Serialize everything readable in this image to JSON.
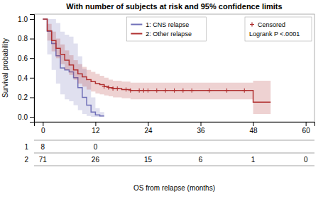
{
  "chart_data": {
    "type": "step",
    "title": "With number of subjects at risk and 95% confidence limits",
    "xlabel": "OS from relapse (months)",
    "ylabel": "Survival probability",
    "xlim": [
      -2,
      62
    ],
    "ylim": [
      -0.05,
      1.05
    ],
    "xticks": [
      0,
      12,
      24,
      36,
      48,
      60
    ],
    "yticks": [
      {
        "value": 0,
        "label": "0.0"
      },
      0.2,
      0.4,
      0.6,
      0.8,
      {
        "value": 1,
        "label": "1.0"
      }
    ],
    "grid": false,
    "legend": "upper center",
    "series": [
      {
        "name": "1: CNS relapse",
        "type": "step",
        "color": "#7070b8",
        "x": [
          0,
          1,
          2,
          3,
          4,
          5,
          6,
          7,
          8,
          9,
          10,
          11,
          12,
          13,
          14
        ],
        "values": [
          1.0,
          0.875,
          0.75,
          0.625,
          0.5,
          0.48,
          0.46,
          0.4,
          0.3,
          0.2,
          0.12,
          0.05,
          0.02,
          0.01,
          0.01
        ],
        "upper": [
          1.0,
          1.0,
          1.0,
          0.96,
          0.87,
          0.84,
          0.82,
          0.75,
          0.62,
          0.49,
          0.37,
          0.2,
          0.09,
          0.05,
          0.05
        ],
        "lower": [
          1.0,
          0.64,
          0.48,
          0.34,
          0.23,
          0.18,
          0.16,
          0.12,
          0.07,
          0.03,
          0.01,
          0.0,
          0.0,
          0.0,
          0.0
        ]
      },
      {
        "name": "2: Other relapse",
        "type": "step",
        "color": "#b03030",
        "x": [
          0,
          1,
          2,
          3,
          4,
          5,
          6,
          7,
          8,
          9,
          10,
          11,
          12,
          13,
          14,
          15,
          16,
          17,
          18,
          19,
          20,
          21,
          22,
          23,
          24,
          25,
          26,
          27,
          28,
          30,
          32,
          34,
          36,
          38,
          40,
          42,
          44,
          46,
          48,
          50,
          52
        ],
        "values": [
          1.0,
          0.88,
          0.78,
          0.7,
          0.64,
          0.58,
          0.53,
          0.48,
          0.44,
          0.41,
          0.38,
          0.36,
          0.34,
          0.33,
          0.31,
          0.3,
          0.29,
          0.29,
          0.28,
          0.28,
          0.27,
          0.27,
          0.27,
          0.27,
          0.27,
          0.27,
          0.27,
          0.27,
          0.27,
          0.27,
          0.27,
          0.27,
          0.27,
          0.27,
          0.27,
          0.27,
          0.27,
          0.27,
          0.15,
          0.15,
          0.15
        ],
        "upper": [
          1.0,
          0.95,
          0.87,
          0.8,
          0.74,
          0.68,
          0.63,
          0.58,
          0.54,
          0.51,
          0.48,
          0.46,
          0.44,
          0.42,
          0.4,
          0.38,
          0.37,
          0.37,
          0.36,
          0.36,
          0.35,
          0.35,
          0.35,
          0.35,
          0.35,
          0.35,
          0.35,
          0.35,
          0.35,
          0.35,
          0.35,
          0.35,
          0.35,
          0.35,
          0.35,
          0.35,
          0.35,
          0.35,
          0.37,
          0.37,
          0.37
        ],
        "lower": [
          1.0,
          0.78,
          0.67,
          0.6,
          0.54,
          0.48,
          0.43,
          0.38,
          0.34,
          0.31,
          0.28,
          0.26,
          0.24,
          0.23,
          0.22,
          0.21,
          0.2,
          0.2,
          0.19,
          0.19,
          0.18,
          0.18,
          0.18,
          0.18,
          0.18,
          0.18,
          0.18,
          0.18,
          0.18,
          0.18,
          0.18,
          0.18,
          0.18,
          0.18,
          0.18,
          0.18,
          0.18,
          0.18,
          0.03,
          0.03,
          0.03
        ]
      },
      {
        "name": "Censored",
        "type": "scatter",
        "marker": "plus",
        "color": "#b03030",
        "x": [
          14,
          15,
          16,
          17,
          19,
          20,
          22,
          23,
          24,
          26,
          28,
          30,
          32,
          34,
          38,
          42,
          46
        ],
        "values": [
          0.31,
          0.3,
          0.29,
          0.29,
          0.28,
          0.27,
          0.27,
          0.27,
          0.27,
          0.27,
          0.27,
          0.27,
          0.27,
          0.27,
          0.27,
          0.27,
          0.27
        ]
      }
    ],
    "annotations": [
      "Logrank P <.0001"
    ],
    "risk_table": {
      "x": [
        0,
        12,
        24,
        36,
        48,
        60
      ],
      "rows": [
        {
          "label": "1",
          "values": [
            8,
            0,
            null,
            null,
            null,
            null
          ]
        },
        {
          "label": "2",
          "values": [
            71,
            26,
            15,
            6,
            1,
            0
          ]
        }
      ]
    }
  }
}
